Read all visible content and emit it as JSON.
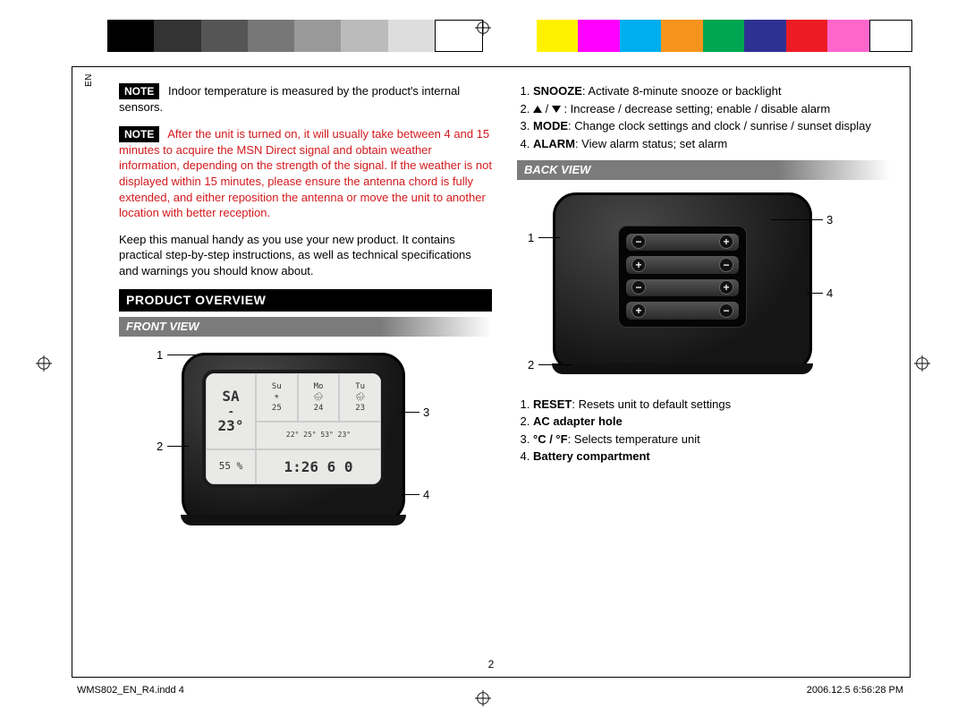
{
  "lang_tag": "EN",
  "color_bar_left": [
    "#000000",
    "#333333",
    "#555555",
    "#777777",
    "#999999",
    "#bbbbbb",
    "#dddddd",
    "#ffffff"
  ],
  "color_bar_right": [
    "#fff200",
    "#ff00ff",
    "#00aeef",
    "#f7941d",
    "#00a651",
    "#2e3192",
    "#ed1c24",
    "#ff66cc",
    "#ffffff"
  ],
  "left_col": {
    "note1_label": "NOTE",
    "note1_text": "Indoor temperature is measured by the product's internal sensors.",
    "note2_label": "NOTE",
    "note2_text": "After the unit is turned on, it will usually take between 4 and 15 minutes to acquire the MSN Direct signal and obtain weather information, depending on the strength of the signal. If the weather is not displayed within 15 minutes, please ensure the antenna chord is fully extended, and either reposition the antenna or move the unit to another location with better reception.",
    "keep_para": "Keep this manual handy as you use your new product. It contains practical step-by-step instructions, as well as technical specifications and warnings you should know about.",
    "section_title": "PRODUCT OVERVIEW",
    "subsection_title": "FRONT VIEW",
    "callouts": {
      "c1": "1",
      "c2": "2",
      "c3": "3",
      "c4": "4"
    }
  },
  "right_col": {
    "front_items": [
      {
        "bold": "SNOOZE",
        "rest": ": Activate 8-minute snooze or backlight"
      },
      {
        "arrows": true,
        "rest": " : Increase / decrease setting; enable / disable alarm"
      },
      {
        "bold": "MODE",
        "rest": ": Change clock settings and clock / sunrise / sunset display"
      },
      {
        "bold": "ALARM",
        "rest": ": View alarm status; set alarm"
      }
    ],
    "subsection_title": "BACK VIEW",
    "callouts": {
      "c1": "1",
      "c2": "2",
      "c3": "3",
      "c4": "4"
    },
    "back_items": [
      {
        "bold": "RESET",
        "rest": ": Resets unit to default settings"
      },
      {
        "bold_full": "AC adapter hole"
      },
      {
        "bold": "°C / °F",
        "rest": ": Selects temperature unit"
      },
      {
        "bold_full": "Battery compartment"
      }
    ]
  },
  "page_number": "2",
  "footer_left": "WMS802_EN_R4.indd   4",
  "footer_right": "2006.12.5   6:56:28 PM",
  "screen_cells": {
    "day_main": "SA",
    "day_su": "Su",
    "day_mo": "Mo",
    "day_tu": "Tu",
    "temp_main": "23°",
    "hum_main": "55 %",
    "time": "1:26 6 0",
    "t_su": "25",
    "t_mo": "24",
    "t_tu": "23",
    "lo_row": "22° 25° 53° 23°"
  }
}
